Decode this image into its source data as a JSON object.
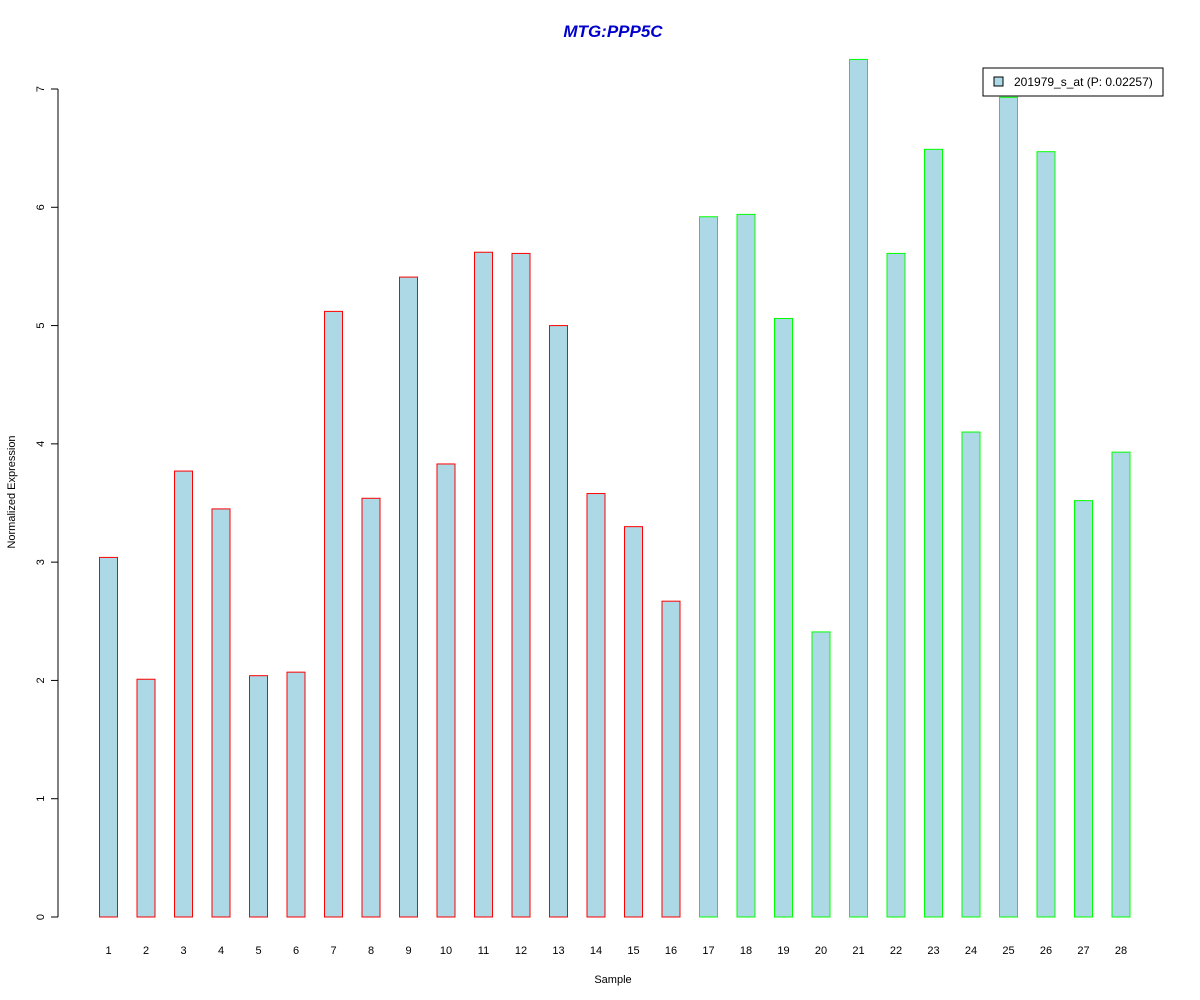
{
  "chart_data": {
    "type": "bar",
    "title": "MTG:PPP5C",
    "xlabel": "Sample",
    "ylabel": "Normalized Expression",
    "ylim": [
      0,
      7.3
    ],
    "yticks": [
      0,
      1,
      2,
      3,
      4,
      5,
      6,
      7
    ],
    "categories": [
      "1",
      "2",
      "3",
      "4",
      "5",
      "6",
      "7",
      "8",
      "9",
      "10",
      "11",
      "12",
      "13",
      "14",
      "15",
      "16",
      "17",
      "18",
      "19",
      "20",
      "21",
      "22",
      "23",
      "24",
      "25",
      "26",
      "27",
      "28"
    ],
    "series": [
      {
        "name": "201979_s_at (P: 0.02257)",
        "values": [
          3.04,
          2.01,
          3.77,
          3.45,
          2.04,
          2.07,
          5.12,
          3.54,
          5.41,
          3.83,
          5.62,
          5.61,
          5.0,
          3.58,
          3.3,
          2.67,
          5.92,
          5.94,
          5.06,
          2.41,
          7.25,
          5.61,
          6.49,
          4.1,
          6.93,
          6.47,
          3.52,
          3.93
        ]
      }
    ],
    "bar_fill": "#add8e6",
    "group_border_colors": {
      "samples_1_16": "#ff0000",
      "samples_17_28": "#00ff00"
    },
    "title_color": "#0000cc",
    "legend_position": "top-right",
    "grid": false
  }
}
